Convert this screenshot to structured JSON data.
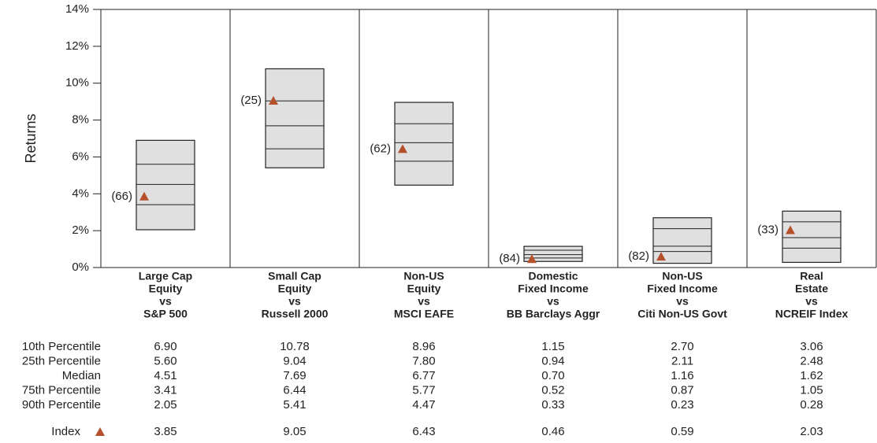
{
  "chart_data": {
    "type": "floating-box",
    "y_label": "Returns",
    "categories": [
      [
        "Large Cap",
        "Equity",
        "vs",
        "S&P 500"
      ],
      [
        "Small Cap",
        "Equity",
        "vs",
        "Russell 2000"
      ],
      [
        "Non-US",
        "Equity",
        "vs",
        "MSCI EAFE"
      ],
      [
        "Domestic",
        "Fixed Income",
        "vs",
        "BB Barclays Aggr"
      ],
      [
        "Non-US",
        "Fixed Income",
        "vs",
        "Citi Non-US Govt"
      ],
      [
        "Real",
        "Estate",
        "vs",
        "NCREIF Index"
      ]
    ],
    "ylim": [
      0,
      14
    ],
    "yticks": [
      {
        "value": 0,
        "label": "0%"
      },
      {
        "value": 2,
        "label": "2%"
      },
      {
        "value": 4,
        "label": "4%"
      },
      {
        "value": 6,
        "label": "6%"
      },
      {
        "value": 8,
        "label": "8%"
      },
      {
        "value": 10,
        "label": "10%"
      },
      {
        "value": 12,
        "label": "12%"
      },
      {
        "value": 14,
        "label": "14%"
      }
    ],
    "box_color": "#e0e0e0",
    "series": [
      {
        "name": "10th Percentile",
        "values": [
          6.9,
          10.78,
          8.96,
          1.15,
          2.7,
          3.06
        ],
        "value_labels": [
          "6.90",
          "10.78",
          "8.96",
          "1.15",
          "2.70",
          "3.06"
        ]
      },
      {
        "name": "25th Percentile",
        "values": [
          5.6,
          9.04,
          7.8,
          0.94,
          2.11,
          2.48
        ],
        "value_labels": [
          "5.60",
          "9.04",
          "7.80",
          "0.94",
          "2.11",
          "2.48"
        ]
      },
      {
        "name": "Median",
        "values": [
          4.51,
          7.69,
          6.77,
          0.7,
          1.16,
          1.62
        ],
        "value_labels": [
          "4.51",
          "7.69",
          "6.77",
          "0.70",
          "1.16",
          "1.62"
        ]
      },
      {
        "name": "75th Percentile",
        "values": [
          3.41,
          6.44,
          5.77,
          0.52,
          0.87,
          1.05
        ],
        "value_labels": [
          "3.41",
          "6.44",
          "5.77",
          "0.52",
          "0.87",
          "1.05"
        ]
      },
      {
        "name": "90th Percentile",
        "values": [
          2.05,
          5.41,
          4.47,
          0.33,
          0.23,
          0.28
        ],
        "value_labels": [
          "2.05",
          "5.41",
          "4.47",
          "0.33",
          "0.23",
          "0.28"
        ]
      }
    ],
    "index": {
      "name": "Index",
      "color": "#b5502c",
      "values": [
        3.85,
        9.05,
        6.43,
        0.46,
        0.59,
        2.03
      ],
      "value_labels": [
        "3.85",
        "9.05",
        "6.43",
        "0.46",
        "0.59",
        "2.03"
      ],
      "ranks": [
        "(66)",
        "(25)",
        "(62)",
        "(84)",
        "(82)",
        "(33)"
      ]
    }
  }
}
